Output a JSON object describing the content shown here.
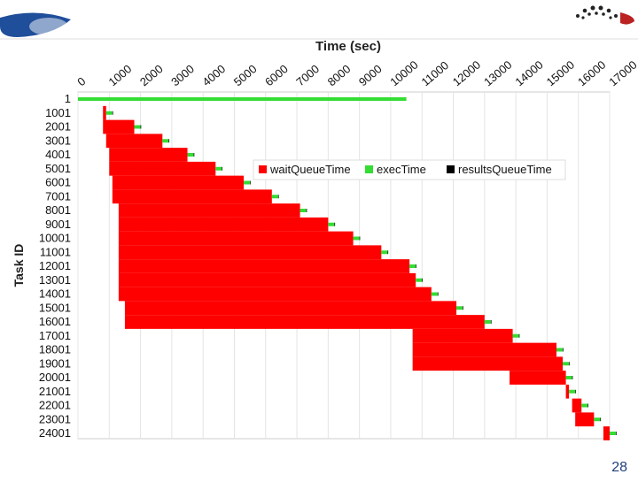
{
  "slide_number": "28",
  "chart_data": {
    "type": "bar",
    "orientation": "horizontal",
    "stacked": true,
    "title": "Time (sec)",
    "y_label": "Task ID",
    "categories": [
      "1",
      "1001",
      "2001",
      "3001",
      "4001",
      "5001",
      "6001",
      "7001",
      "8001",
      "9001",
      "10001",
      "11001",
      "12001",
      "13001",
      "14001",
      "15001",
      "16001",
      "17001",
      "18001",
      "19001",
      "20001",
      "21001",
      "22001",
      "23001",
      "24001"
    ],
    "start": [
      0,
      800,
      800,
      900,
      1000,
      1000,
      1100,
      1100,
      1300,
      1300,
      1300,
      1300,
      1300,
      1300,
      1300,
      1500,
      1500,
      10700,
      10700,
      10700,
      13800,
      15600,
      15800,
      15900,
      16800
    ],
    "series": [
      {
        "name": "waitQueueTime",
        "color": "#ff0000",
        "values": [
          0,
          100,
          1000,
          1800,
          2500,
          3400,
          4200,
          5100,
          5800,
          6700,
          7500,
          8400,
          9300,
          9500,
          10000,
          10600,
          11500,
          3200,
          4600,
          4800,
          1800,
          100,
          300,
          600,
          200
        ]
      },
      {
        "name": "execTime",
        "color": "#33dd33",
        "values": [
          10500,
          200,
          200,
          200,
          200,
          200,
          200,
          200,
          200,
          200,
          200,
          200,
          200,
          200,
          200,
          200,
          200,
          200,
          200,
          200,
          200,
          200,
          200,
          200,
          200
        ]
      },
      {
        "name": "resultsQueueTime",
        "color": "#000000",
        "values": [
          0,
          20,
          20,
          20,
          20,
          20,
          20,
          20,
          20,
          20,
          20,
          20,
          20,
          20,
          20,
          20,
          20,
          20,
          20,
          20,
          20,
          20,
          20,
          20,
          20
        ]
      }
    ],
    "xlim": [
      0,
      17000
    ],
    "xticks": [
      0,
      1000,
      2000,
      3000,
      4000,
      5000,
      6000,
      7000,
      8000,
      9000,
      10000,
      11000,
      12000,
      13000,
      14000,
      15000,
      16000,
      17000
    ],
    "grid": true,
    "legend": "top-right"
  }
}
